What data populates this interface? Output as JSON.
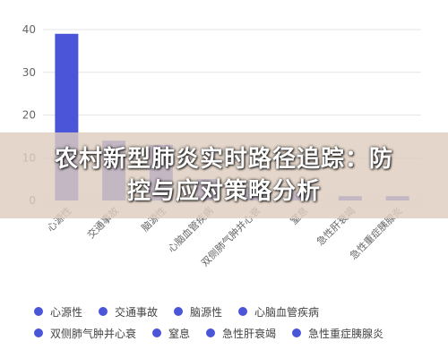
{
  "overlay": {
    "title_line1": "农村新型肺炎实时路径追踪：防",
    "title_line2": "控与应对策略分析"
  },
  "chart_data": {
    "type": "bar",
    "categories": [
      "心源性",
      "交通事故",
      "脑源性",
      "心脑血管疾病",
      "双侧肺气肿并心衰",
      "窒息",
      "急性肝衰竭",
      "急性重症胰腺炎"
    ],
    "values": [
      39,
      14,
      13,
      5,
      3,
      2,
      1,
      1
    ],
    "yticks": [
      0,
      10,
      20,
      30,
      40
    ],
    "ylim": [
      0,
      40
    ],
    "grid": true,
    "legend_position": "bottom",
    "colors": {
      "bar": "#4a55d8",
      "grid": "#e6e6e6",
      "axis_text": "#666666"
    }
  }
}
